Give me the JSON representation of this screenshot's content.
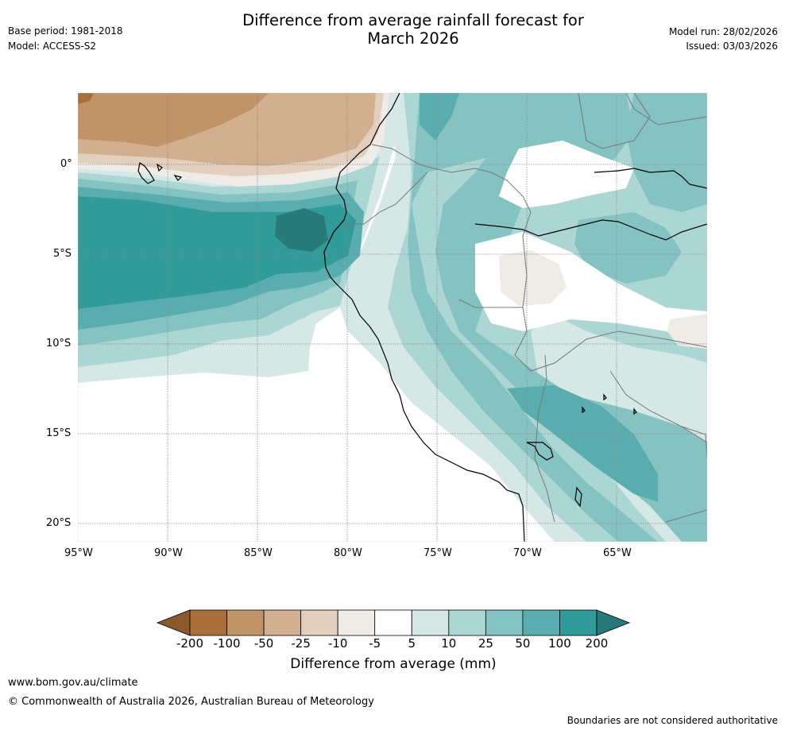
{
  "header": {
    "title_line1": "Difference from average rainfall forecast for",
    "title_line2": "March 2026",
    "base_period": "Base period: 1981-2018",
    "model": "Model: ACCESS-S2",
    "model_run": "Model run: 28/02/2026",
    "issued": "Issued: 03/03/2026"
  },
  "map": {
    "lat_labels": [
      "0°",
      "5°S",
      "10°S",
      "15°S",
      "20°S"
    ],
    "lon_labels": [
      "95°W",
      "90°W",
      "85°W",
      "80°W",
      "75°W",
      "70°W",
      "65°W"
    ]
  },
  "colorbar": {
    "ticks": [
      "-200",
      "-100",
      "-50",
      "-25",
      "-10",
      "-5",
      "5",
      "10",
      "25",
      "50",
      "100",
      "200"
    ],
    "label": "Difference from average (mm)",
    "colors": [
      "#8a5a2b",
      "#a86f3b",
      "#c19368",
      "#d2b08f",
      "#e3cfbd",
      "#efebe7",
      "#ffffff",
      "#d5e8e6",
      "#acd6d4",
      "#84c3c1",
      "#5aadae",
      "#309b98",
      "#267a77"
    ]
  },
  "footer": {
    "website": "www.bom.gov.au/climate",
    "copyright": "© Commonwealth of Australia 2026, Australian Bureau of Meteorology",
    "disclaimer": "Boundaries are not considered authoritative"
  }
}
